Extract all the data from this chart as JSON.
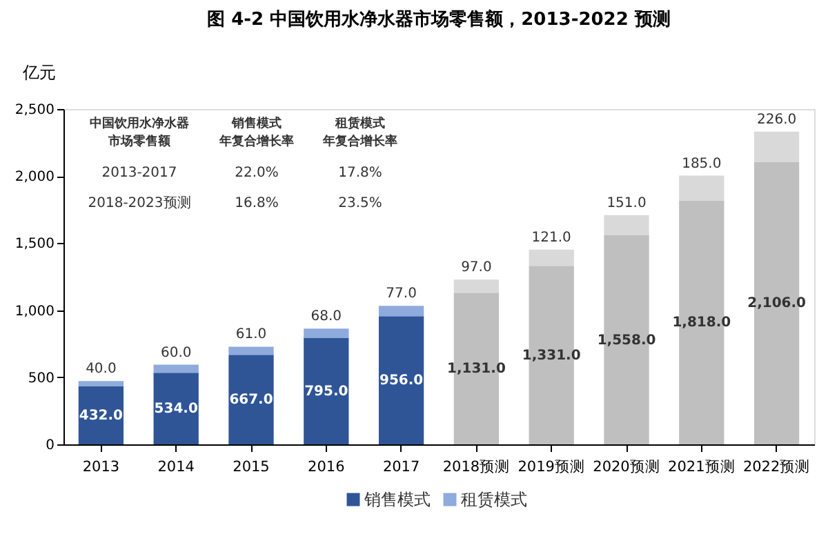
{
  "chart_data": {
    "type": "bar",
    "title": "图  4-2  中国饮用水净水器市场零售额，2013-2022 预测",
    "ylabel": "亿元",
    "categories": [
      "2013",
      "2014",
      "2015",
      "2016",
      "2017",
      "2018预测",
      "2019预测",
      "2020预测",
      "2021预测",
      "2022预测"
    ],
    "stacked": true,
    "series": [
      {
        "name": "销售模式",
        "color": "#2f5597",
        "colors": [
          "#2f5597",
          "#2f5597",
          "#2f5597",
          "#2f5597",
          "#2f5597",
          "#bfbfbf",
          "#bfbfbf",
          "#bfbfbf",
          "#bfbfbf",
          "#bfbfbf"
        ],
        "values": [
          432.0,
          534.0,
          667.0,
          795.0,
          956.0,
          1131.0,
          1331.0,
          1558.0,
          1818.0,
          2106.0
        ],
        "value_labels": [
          "432.0",
          "534.0",
          "667.0",
          "795.0",
          "956.0",
          "1,131.0",
          "1,331.0",
          "1,558.0",
          "1,818.0",
          "2,106.0"
        ]
      },
      {
        "name": "租赁模式",
        "color": "#8faadc",
        "colors": [
          "#8faadc",
          "#8faadc",
          "#8faadc",
          "#8faadc",
          "#8faadc",
          "#d9d9d9",
          "#d9d9d9",
          "#d9d9d9",
          "#d9d9d9",
          "#d9d9d9"
        ],
        "values": [
          40.0,
          60.0,
          61.0,
          68.0,
          77.0,
          97.0,
          121.0,
          151.0,
          185.0,
          226.0
        ],
        "value_labels": [
          "40.0",
          "60.0",
          "61.0",
          "68.0",
          "77.0",
          "97.0",
          "121.0",
          "151.0",
          "185.0",
          "226.0"
        ]
      }
    ],
    "ylim": [
      0,
      2500
    ],
    "yticks": [
      0,
      500,
      {
        "value": 1000,
        "label": "1,000"
      },
      {
        "value": 1500,
        "label": "1,500"
      },
      {
        "value": 2000,
        "label": "2,000"
      },
      {
        "value": 2500,
        "label": "2,500"
      }
    ],
    "grid": false,
    "legend": "bottom",
    "annotations": [
      "中国饮用水净水器",
      "销售模式",
      "租赁模式",
      "市场零售额",
      "年复合增长率",
      "年复合增长率",
      "2013-2017",
      "22.0%",
      "17.8%",
      "2018-2023预测",
      "16.8%",
      "23.5%"
    ]
  }
}
